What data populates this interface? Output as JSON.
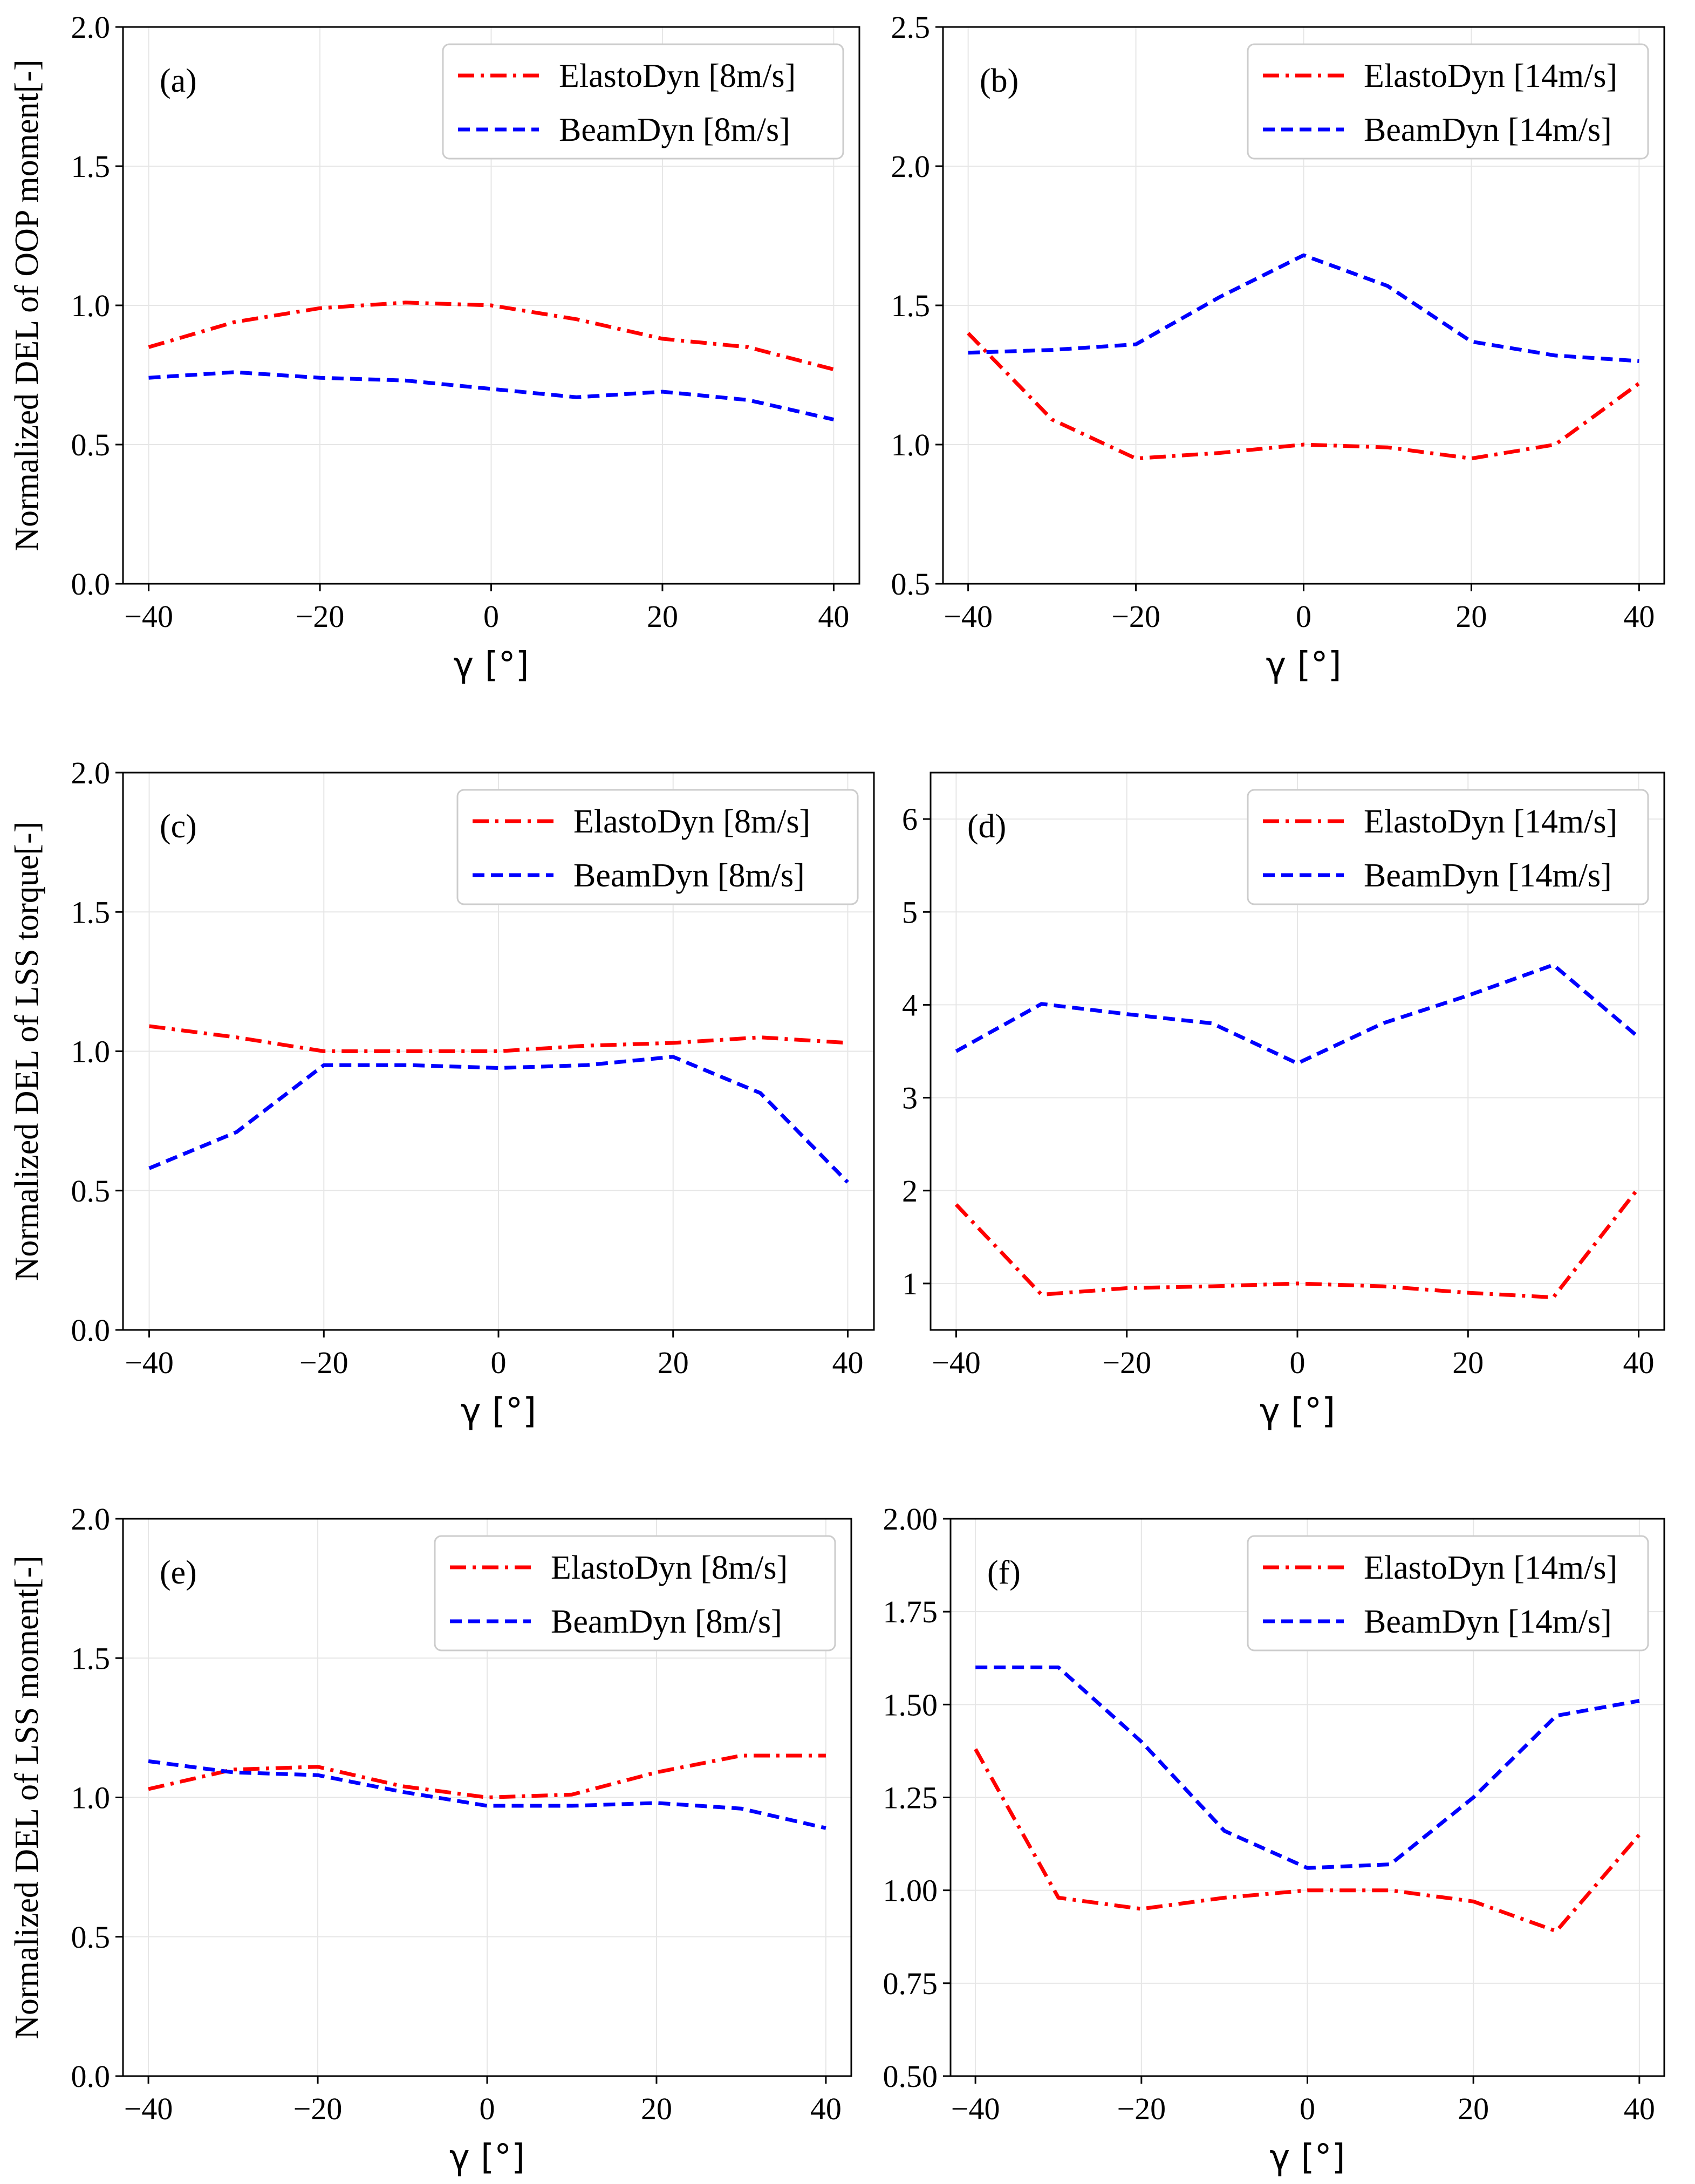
{
  "figure": {
    "background": "#ffffff",
    "grid_color": "#e6e6e6",
    "series_styles": [
      {
        "color": "#ff0000",
        "dash": "dashdot"
      },
      {
        "color": "#0000ff",
        "dash": "dashed"
      }
    ]
  },
  "chart_data": [
    {
      "panel": "(a)",
      "type": "line",
      "xlabel": "γ [°]",
      "ylabel": "Normalized DEL of OOP moment[-]",
      "xlim": [
        -43,
        43
      ],
      "ylim": [
        0.0,
        2.0
      ],
      "xticks": [
        -40,
        -20,
        0,
        20,
        40
      ],
      "xtick_labels": [
        "−40",
        "−20",
        "0",
        "20",
        "40"
      ],
      "yticks": [
        0.0,
        0.5,
        1.0,
        1.5,
        2.0
      ],
      "ytick_labels": [
        "0.0",
        "0.5",
        "1.0",
        "1.5",
        "2.0"
      ],
      "x": [
        -40,
        -30,
        -20,
        -10,
        0,
        10,
        20,
        30,
        40
      ],
      "series": [
        {
          "name": "ElastoDyn [8m/s]",
          "values": [
            0.85,
            0.94,
            0.99,
            1.01,
            1.0,
            0.95,
            0.88,
            0.85,
            0.77
          ]
        },
        {
          "name": "BeamDyn [8m/s]",
          "values": [
            0.74,
            0.76,
            0.74,
            0.73,
            0.7,
            0.67,
            0.69,
            0.66,
            0.59
          ]
        }
      ],
      "legend": "top-right",
      "grid": true
    },
    {
      "panel": "(b)",
      "type": "line",
      "xlabel": "γ [°]",
      "ylabel": "",
      "xlim": [
        -43,
        43
      ],
      "ylim": [
        0.5,
        2.5
      ],
      "xticks": [
        -40,
        -20,
        0,
        20,
        40
      ],
      "xtick_labels": [
        "−40",
        "−20",
        "0",
        "20",
        "40"
      ],
      "yticks": [
        0.5,
        1.0,
        1.5,
        2.0,
        2.5
      ],
      "ytick_labels": [
        "0.5",
        "1.0",
        "1.5",
        "2.0",
        "2.5"
      ],
      "x": [
        -40,
        -30,
        -20,
        -10,
        0,
        10,
        20,
        30,
        40
      ],
      "series": [
        {
          "name": "ElastoDyn [14m/s]",
          "values": [
            1.4,
            1.09,
            0.95,
            0.97,
            1.0,
            0.99,
            0.95,
            1.0,
            1.22
          ]
        },
        {
          "name": "BeamDyn [14m/s]",
          "values": [
            1.33,
            1.34,
            1.36,
            1.53,
            1.68,
            1.57,
            1.37,
            1.32,
            1.3
          ]
        }
      ],
      "legend": "top-right",
      "grid": true
    },
    {
      "panel": "(c)",
      "type": "line",
      "xlabel": "γ [°]",
      "ylabel": "Normalized DEL of LSS torque[-]",
      "xlim": [
        -43,
        43
      ],
      "ylim": [
        0.0,
        2.0
      ],
      "xticks": [
        -40,
        -20,
        0,
        20,
        40
      ],
      "xtick_labels": [
        "−40",
        "−20",
        "0",
        "20",
        "40"
      ],
      "yticks": [
        0.0,
        0.5,
        1.0,
        1.5,
        2.0
      ],
      "ytick_labels": [
        "0.0",
        "0.5",
        "1.0",
        "1.5",
        "2.0"
      ],
      "x": [
        -40,
        -30,
        -20,
        -10,
        0,
        10,
        20,
        30,
        40
      ],
      "series": [
        {
          "name": "ElastoDyn [8m/s]",
          "values": [
            1.09,
            1.05,
            1.0,
            1.0,
            1.0,
            1.02,
            1.03,
            1.05,
            1.03
          ]
        },
        {
          "name": "BeamDyn [8m/s]",
          "values": [
            0.58,
            0.71,
            0.95,
            0.95,
            0.94,
            0.95,
            0.98,
            0.85,
            0.53
          ]
        }
      ],
      "legend": "top-right",
      "grid": true
    },
    {
      "panel": "(d)",
      "type": "line",
      "xlabel": "γ [°]",
      "ylabel": "",
      "xlim": [
        -43,
        43
      ],
      "ylim": [
        0.5,
        6.5
      ],
      "xticks": [
        -40,
        -20,
        0,
        20,
        40
      ],
      "xtick_labels": [
        "−40",
        "−20",
        "0",
        "20",
        "40"
      ],
      "yticks": [
        1,
        2,
        3,
        4,
        5,
        6
      ],
      "ytick_labels": [
        "1",
        "2",
        "3",
        "4",
        "5",
        "6"
      ],
      "x": [
        -40,
        -30,
        -20,
        -10,
        0,
        10,
        20,
        30,
        40
      ],
      "series": [
        {
          "name": "ElastoDyn [14m/s]",
          "values": [
            1.85,
            0.88,
            0.95,
            0.97,
            1.0,
            0.97,
            0.9,
            0.85,
            2.03
          ]
        },
        {
          "name": "BeamDyn [14m/s]",
          "values": [
            3.5,
            4.01,
            3.9,
            3.8,
            3.37,
            3.8,
            4.1,
            4.43,
            3.65
          ]
        }
      ],
      "legend": "top-right",
      "grid": true
    },
    {
      "panel": "(e)",
      "type": "line",
      "xlabel": "γ [°]",
      "ylabel": "Normalized DEL of LSS moment[-]",
      "xlim": [
        -43,
        43
      ],
      "ylim": [
        0.0,
        2.0
      ],
      "xticks": [
        -40,
        -20,
        0,
        20,
        40
      ],
      "xtick_labels": [
        "−40",
        "−20",
        "0",
        "20",
        "40"
      ],
      "yticks": [
        0.0,
        0.5,
        1.0,
        1.5,
        2.0
      ],
      "ytick_labels": [
        "0.0",
        "0.5",
        "1.0",
        "1.5",
        "2.0"
      ],
      "x": [
        -40,
        -30,
        -20,
        -10,
        0,
        10,
        20,
        30,
        40
      ],
      "series": [
        {
          "name": "ElastoDyn [8m/s]",
          "values": [
            1.03,
            1.1,
            1.11,
            1.04,
            1.0,
            1.01,
            1.09,
            1.15,
            1.15
          ]
        },
        {
          "name": "BeamDyn [8m/s]",
          "values": [
            1.13,
            1.09,
            1.08,
            1.02,
            0.97,
            0.97,
            0.98,
            0.96,
            0.89
          ]
        }
      ],
      "legend": "top-right",
      "grid": true
    },
    {
      "panel": "(f)",
      "type": "line",
      "xlabel": "γ [°]",
      "ylabel": "",
      "xlim": [
        -43,
        43
      ],
      "ylim": [
        0.5,
        2.0
      ],
      "xticks": [
        -40,
        -20,
        0,
        20,
        40
      ],
      "xtick_labels": [
        "−40",
        "−20",
        "0",
        "20",
        "40"
      ],
      "yticks": [
        0.5,
        0.75,
        1.0,
        1.25,
        1.5,
        1.75,
        2.0
      ],
      "ytick_labels": [
        "0.50",
        "0.75",
        "1.00",
        "1.25",
        "1.50",
        "1.75",
        "2.00"
      ],
      "x": [
        -40,
        -30,
        -20,
        -10,
        0,
        10,
        20,
        30,
        40
      ],
      "series": [
        {
          "name": "ElastoDyn [14m/s]",
          "values": [
            1.38,
            0.98,
            0.95,
            0.98,
            1.0,
            1.0,
            0.97,
            0.89,
            1.15
          ]
        },
        {
          "name": "BeamDyn [14m/s]",
          "values": [
            1.6,
            1.6,
            1.4,
            1.16,
            1.06,
            1.07,
            1.25,
            1.47,
            1.51
          ]
        }
      ],
      "legend": "top-right",
      "grid": true
    }
  ]
}
